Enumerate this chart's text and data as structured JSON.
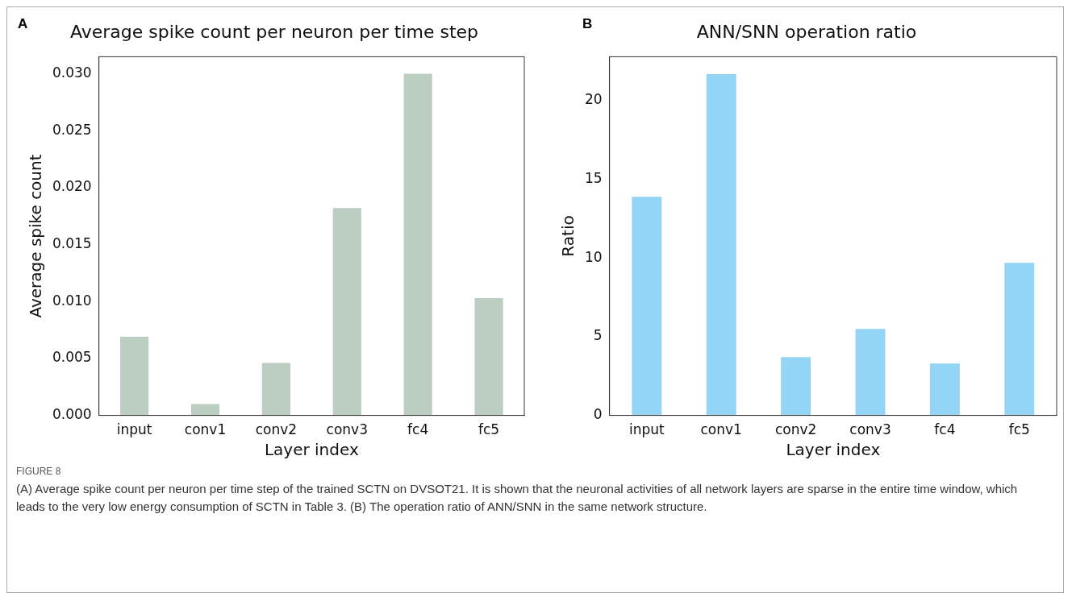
{
  "chart_data": [
    {
      "type": "bar",
      "title": "Average spike count per neuron per time step",
      "xlabel": "Layer index",
      "ylabel": "Average spike count",
      "annotations": [
        "A"
      ],
      "categories": [
        "input",
        "conv1",
        "conv2",
        "conv3",
        "fc4",
        "fc5"
      ],
      "values": [
        0.0069,
        0.001,
        0.0046,
        0.0182,
        0.03,
        0.0103
      ],
      "color": "#bccdc1",
      "ylim": [
        0,
        0.0315
      ],
      "yticks": [
        {
          "value": 0,
          "label": "0.000"
        },
        {
          "value": 0.005,
          "label": "0.005"
        },
        {
          "value": 0.01,
          "label": "0.010"
        },
        {
          "value": 0.015,
          "label": "0.015"
        },
        {
          "value": 0.02,
          "label": "0.020"
        },
        {
          "value": 0.025,
          "label": "0.025"
        },
        {
          "value": 0.03,
          "label": "0.030"
        }
      ],
      "grid": false
    },
    {
      "type": "bar",
      "title": "ANN/SNN operation ratio",
      "xlabel": "Layer index",
      "ylabel": "Ratio",
      "annotations": [
        "B",
        "FIGURE 8",
        "(A) Average spike count per neuron per time step of the trained SCTN on DVSOT21. It is shown that the neuronal activities of all network layers are sparse in the entire time window, which leads to the very low energy consumption of SCTN in Table 3. (B) The operation ratio of ANN/SNN in the same network structure."
      ],
      "categories": [
        "input",
        "conv1",
        "conv2",
        "conv3",
        "fc4",
        "fc5"
      ],
      "values": [
        13.9,
        21.7,
        3.7,
        5.5,
        3.3,
        9.7
      ],
      "color": "#94d4f5",
      "ylim": [
        0,
        22.8
      ],
      "yticks": [
        0,
        5,
        10,
        15,
        20
      ],
      "grid": false
    }
  ]
}
